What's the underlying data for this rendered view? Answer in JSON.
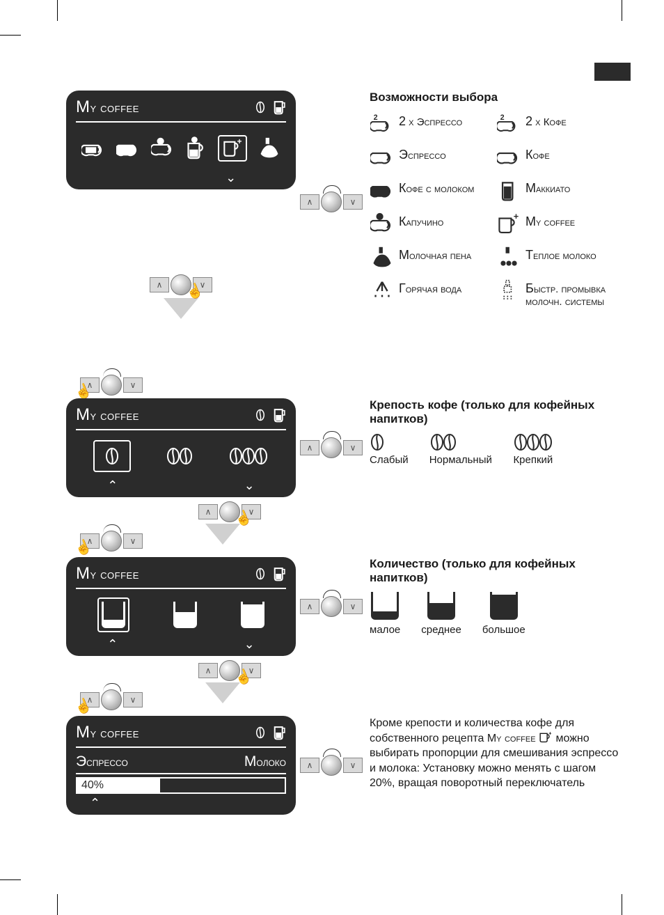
{
  "colors": {
    "panel": "#2b2b2b",
    "fg": "#ffffff",
    "arrow": "#d0d0d0",
    "text": "#1a1a1a"
  },
  "lcd_title": "My coffee",
  "options_title": "Возможности выбора",
  "options": [
    {
      "icon": "double-espresso",
      "label": "2 x Эспрессо"
    },
    {
      "icon": "double-coffee",
      "label": "2 x Кофе"
    },
    {
      "icon": "espresso",
      "label": "Эспрессо"
    },
    {
      "icon": "coffee",
      "label": "Кофе"
    },
    {
      "icon": "coffee-milk",
      "label": "Кофе с молоком"
    },
    {
      "icon": "macchiato",
      "label": "Маккиато"
    },
    {
      "icon": "cappuccino",
      "label": "Капучино"
    },
    {
      "icon": "my-coffee",
      "label": "My coffee"
    },
    {
      "icon": "milk-foam",
      "label": "Молочная пена"
    },
    {
      "icon": "warm-milk",
      "label": "Теплое молоко"
    },
    {
      "icon": "hot-water",
      "label": "Горячая вода"
    },
    {
      "icon": "rinse-milk",
      "label": "Быстр. промывка молочн. системы"
    }
  ],
  "strength_title": "Крепость кофе (только для кофейных напитков)",
  "strength": [
    {
      "beans": 1,
      "label": "Слабый"
    },
    {
      "beans": 2,
      "label": "Нормальный"
    },
    {
      "beans": 3,
      "label": "Крепкий"
    }
  ],
  "amount_title": "Количество (только для кофейных напитков)",
  "amount": [
    {
      "level": 0.25,
      "label": "малое"
    },
    {
      "level": 0.55,
      "label": "среднее"
    },
    {
      "level": 0.85,
      "label": "большое"
    }
  ],
  "mix": {
    "left_label": "Эспрессо",
    "right_label": "Молоко",
    "value_label": "40%",
    "value_pct": 40
  },
  "paragraph": "Кроме крепости и количества кофе для собственного рецепта My coffee ⬚⁺ можно выбирать пропорции для смешивания эспрессо и молока: Установку можно менять с шагом 20%, вращая поворотный переключатель"
}
